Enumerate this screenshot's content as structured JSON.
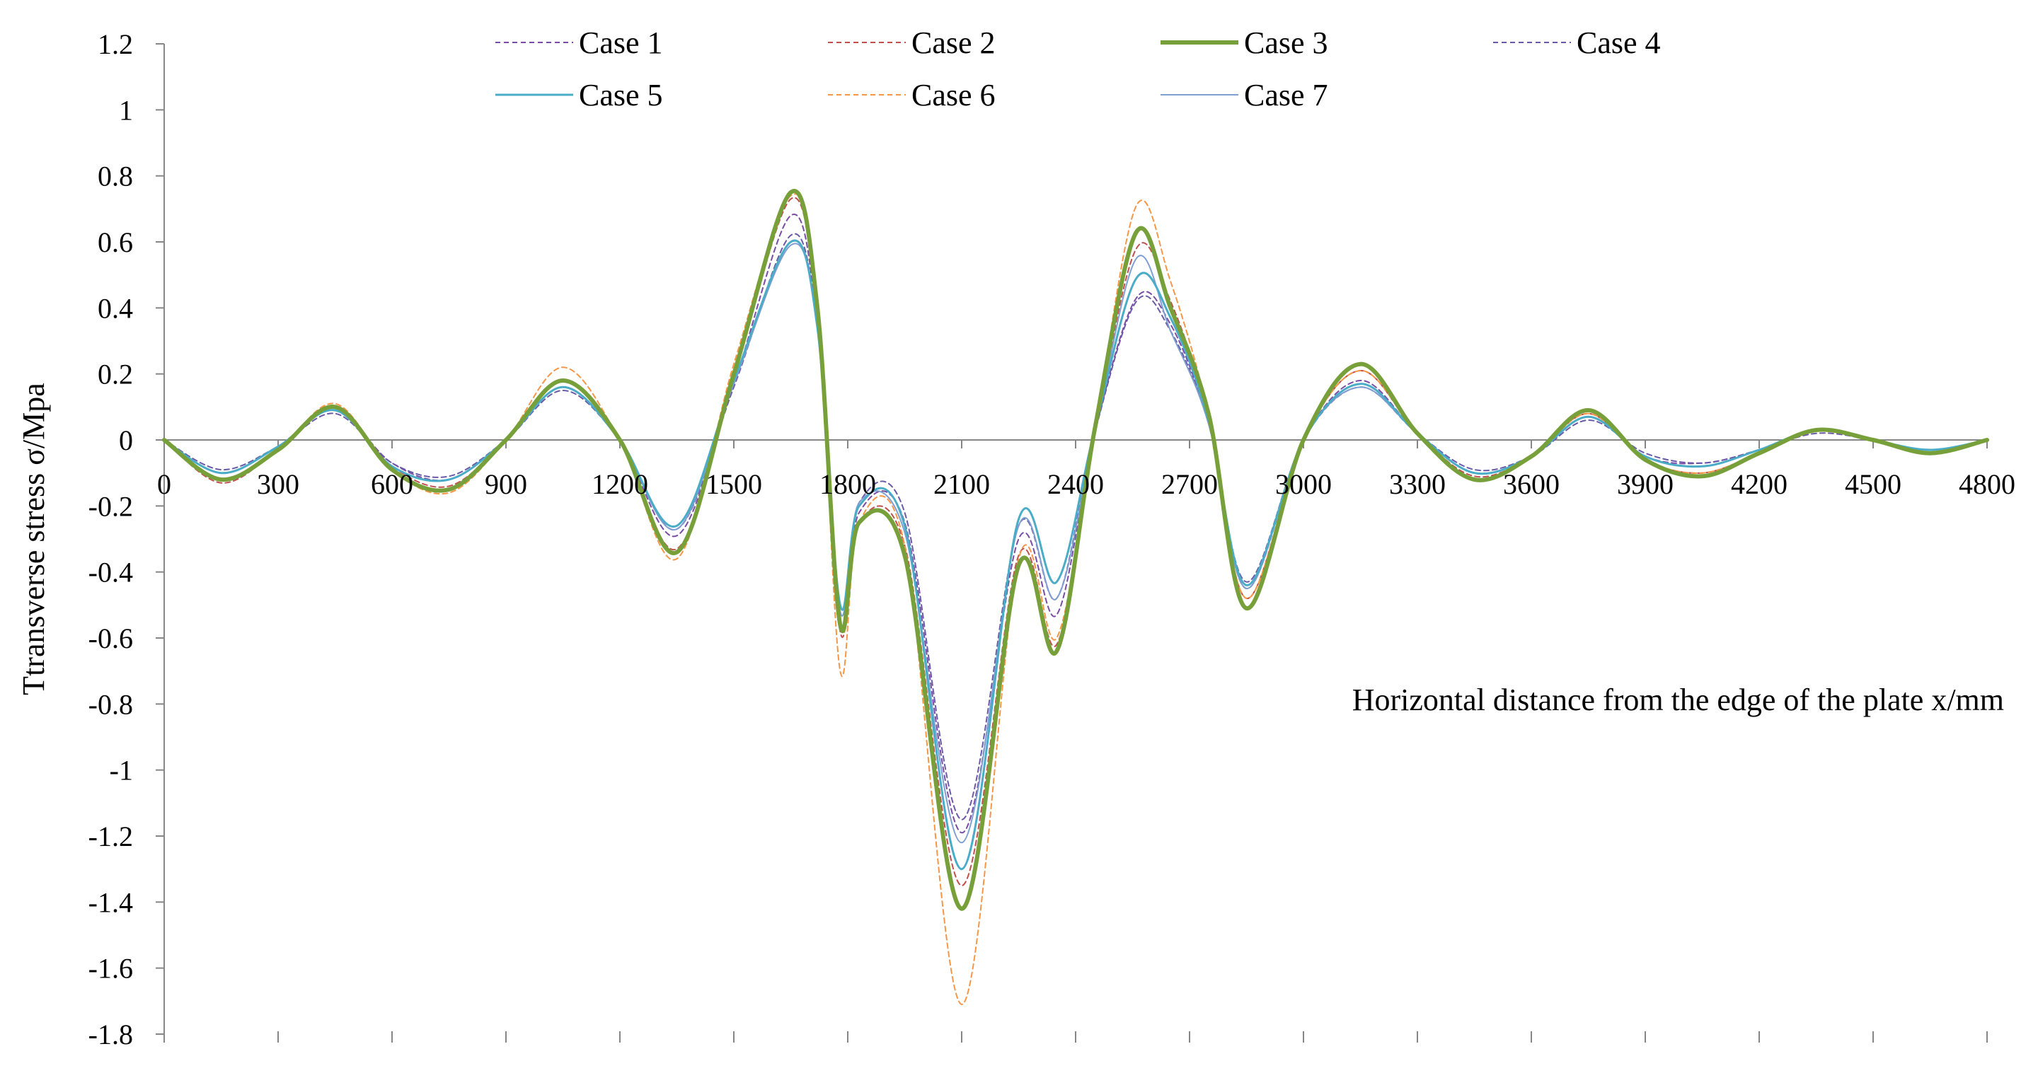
{
  "chart_data": {
    "type": "line",
    "title": "",
    "xlabel": "Horizontal distance from the edge of the plate x/mm",
    "ylabel": "Ttransverse stress σ/Mpa",
    "xlim": [
      0,
      4800
    ],
    "ylim": [
      -1.8,
      1.2
    ],
    "x_ticks": [
      0,
      300,
      600,
      900,
      1200,
      1500,
      1800,
      2100,
      2400,
      2700,
      3000,
      3300,
      3600,
      3900,
      4200,
      4500,
      4800
    ],
    "x_tick_labels": [
      "0",
      "300",
      "600",
      "900",
      "1200",
      "1500",
      "1800",
      "2100",
      "2400",
      "2700",
      "3000",
      "3300",
      "3600",
      "3900",
      "4200",
      "4500",
      "4800"
    ],
    "y_ticks": [
      1.2,
      1,
      0.8,
      0.6,
      0.4,
      0.2,
      0,
      -0.2,
      -0.4,
      -0.6,
      -0.8,
      -1,
      -1.2,
      -1.4,
      -1.6,
      -1.8
    ],
    "y_tick_labels": [
      "1.2",
      "1",
      "0.8",
      "0.6",
      "0.4",
      "0.2",
      "0",
      "-0.2",
      "-0.4",
      "-0.6",
      "-0.8",
      "-1",
      "-1.2",
      "-1.4",
      "-1.6",
      "-1.8"
    ],
    "grid": false,
    "legend_position": "top",
    "x": [
      0,
      150,
      300,
      450,
      600,
      750,
      900,
      1050,
      1200,
      1350,
      1500,
      1650,
      1720,
      1780,
      1830,
      1950,
      2100,
      2250,
      2350,
      2450,
      2560,
      2650,
      2750,
      2850,
      3000,
      3150,
      3300,
      3450,
      3600,
      3750,
      3900,
      4050,
      4200,
      4350,
      4500,
      4650,
      4800
    ],
    "series": [
      {
        "name": "Case 1",
        "color": "#7a4ca6",
        "dash": "dashed",
        "width": 2,
        "values": [
          0,
          -0.1,
          -0.02,
          0.09,
          -0.07,
          -0.12,
          0.0,
          0.16,
          0.0,
          -0.29,
          0.17,
          0.68,
          0.35,
          -0.55,
          -0.22,
          -0.25,
          -1.19,
          -0.3,
          -0.53,
          0.02,
          0.43,
          0.35,
          0.05,
          -0.45,
          0.0,
          0.18,
          0.02,
          -0.1,
          -0.05,
          0.07,
          -0.05,
          -0.07,
          -0.03,
          0.03,
          0.0,
          -0.03,
          0.0
        ]
      },
      {
        "name": "Case 2",
        "color": "#c0504d",
        "dash": "dashed",
        "width": 2,
        "values": [
          0,
          -0.13,
          -0.03,
          0.1,
          -0.08,
          -0.14,
          0.0,
          0.18,
          0.0,
          -0.33,
          0.19,
          0.73,
          0.38,
          -0.58,
          -0.25,
          -0.32,
          -1.35,
          -0.35,
          -0.62,
          0.02,
          0.58,
          0.42,
          0.07,
          -0.48,
          0.0,
          0.21,
          0.02,
          -0.11,
          -0.05,
          0.08,
          -0.06,
          -0.1,
          -0.04,
          0.03,
          0.0,
          -0.03,
          0.0
        ]
      },
      {
        "name": "Case 3",
        "color": "#77a03a",
        "dash": "solid",
        "width": 6,
        "values": [
          0,
          -0.12,
          -0.03,
          0.1,
          -0.09,
          -0.15,
          0.0,
          0.18,
          0.0,
          -0.34,
          0.2,
          0.75,
          0.4,
          -0.56,
          -0.25,
          -0.35,
          -1.42,
          -0.38,
          -0.64,
          0.03,
          0.63,
          0.4,
          0.08,
          -0.51,
          0.0,
          0.23,
          0.02,
          -0.12,
          -0.05,
          0.09,
          -0.06,
          -0.11,
          -0.04,
          0.03,
          0.0,
          -0.04,
          0.0
        ]
      },
      {
        "name": "Case 4",
        "color": "#6a5aa8",
        "dash": "dashed",
        "width": 2,
        "values": [
          0,
          -0.09,
          -0.02,
          0.08,
          -0.07,
          -0.11,
          0.0,
          0.15,
          0.0,
          -0.27,
          0.16,
          0.62,
          0.34,
          -0.52,
          -0.19,
          -0.22,
          -1.15,
          -0.26,
          -0.48,
          0.02,
          0.42,
          0.33,
          0.05,
          -0.43,
          0.0,
          0.16,
          0.02,
          -0.09,
          -0.05,
          0.06,
          -0.04,
          -0.07,
          -0.03,
          0.02,
          0.0,
          -0.03,
          0.0
        ]
      },
      {
        "name": "Case 5",
        "color": "#4aacc6",
        "dash": "solid",
        "width": 3,
        "values": [
          0,
          -0.1,
          -0.02,
          0.09,
          -0.08,
          -0.12,
          0.0,
          0.16,
          0.0,
          -0.26,
          0.18,
          0.6,
          0.34,
          -0.5,
          -0.2,
          -0.26,
          -1.3,
          -0.24,
          -0.43,
          0.03,
          0.49,
          0.37,
          0.06,
          -0.44,
          0.0,
          0.17,
          0.02,
          -0.1,
          -0.05,
          0.07,
          -0.05,
          -0.08,
          -0.03,
          0.03,
          0.0,
          -0.03,
          0.0
        ]
      },
      {
        "name": "Case 6",
        "color": "#f79646",
        "dash": "dashed",
        "width": 2,
        "values": [
          0,
          -0.12,
          -0.03,
          0.11,
          -0.09,
          -0.16,
          0.0,
          0.22,
          0.0,
          -0.36,
          0.23,
          0.74,
          0.42,
          -0.7,
          -0.25,
          -0.32,
          -1.71,
          -0.36,
          -0.6,
          0.03,
          0.71,
          0.48,
          0.08,
          -0.48,
          0.0,
          0.21,
          0.02,
          -0.12,
          -0.05,
          0.08,
          -0.06,
          -0.1,
          -0.04,
          0.03,
          0.0,
          -0.04,
          0.0
        ]
      },
      {
        "name": "Case 7",
        "color": "#7f9ed1",
        "dash": "solid",
        "width": 2,
        "values": [
          0,
          -0.1,
          -0.02,
          0.09,
          -0.08,
          -0.12,
          0.0,
          0.16,
          0.0,
          -0.27,
          0.17,
          0.59,
          0.34,
          -0.52,
          -0.19,
          -0.28,
          -1.22,
          -0.26,
          -0.48,
          0.02,
          0.55,
          0.33,
          0.05,
          -0.45,
          0.0,
          0.16,
          0.02,
          -0.1,
          -0.05,
          0.07,
          -0.05,
          -0.08,
          -0.03,
          0.03,
          0.0,
          -0.03,
          0.0
        ]
      }
    ]
  }
}
